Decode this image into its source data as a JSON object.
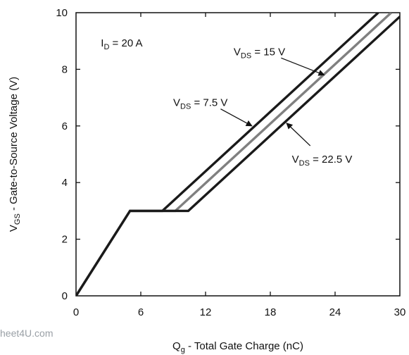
{
  "watermark": "heet4U.com",
  "chart_data": {
    "type": "line",
    "title": "",
    "xlabel": {
      "main": "Q",
      "sub": "g",
      "rest": " - Total Gate Charge (nC)"
    },
    "ylabel": {
      "main": "V",
      "sub": "GS",
      "rest": " - Gate-to-Source Voltage (V)"
    },
    "xlim": [
      0,
      30
    ],
    "ylim": [
      0,
      10
    ],
    "xticks": [
      0,
      6,
      12,
      18,
      24,
      30
    ],
    "yticks": [
      0,
      2,
      4,
      6,
      8,
      10
    ],
    "grid": false,
    "series": [
      {
        "name": "VDS = 7.5 V",
        "color": "#1a1a1a",
        "x": [
          0,
          5,
          8,
          28
        ],
        "y": [
          0,
          3,
          3,
          10
        ]
      },
      {
        "name": "VDS = 15 V",
        "color": "#808080",
        "x": [
          0,
          5,
          9.2,
          29.2
        ],
        "y": [
          0,
          3,
          3,
          10
        ]
      },
      {
        "name": "VDS = 22.5 V",
        "color": "#1a1a1a",
        "x": [
          0,
          5,
          10.4,
          30.4
        ],
        "y": [
          0,
          3,
          3,
          10
        ]
      }
    ],
    "annotations": [
      {
        "id": "id",
        "main": "I",
        "sub": "D",
        "rest": " = 20 A",
        "x": 2.3,
        "y": 8.8
      },
      {
        "id": "vds15",
        "main": "V",
        "sub": "DS",
        "rest": " = 15 V",
        "x": 14.6,
        "y": 8.5,
        "arrow_from": [
          19.0,
          8.4
        ],
        "arrow_to": [
          23.0,
          7.8
        ]
      },
      {
        "id": "vds75",
        "main": "V",
        "sub": "DS",
        "rest": " = 7.5 V",
        "x": 9.0,
        "y": 6.7,
        "arrow_from": [
          13.4,
          6.6
        ],
        "arrow_to": [
          16.3,
          6.0
        ]
      },
      {
        "id": "vds225",
        "main": "V",
        "sub": "DS",
        "rest": " = 22.5 V",
        "x": 20.0,
        "y": 4.7,
        "arrow_from": [
          21.7,
          5.3
        ],
        "arrow_to": [
          19.5,
          6.1
        ]
      }
    ]
  }
}
